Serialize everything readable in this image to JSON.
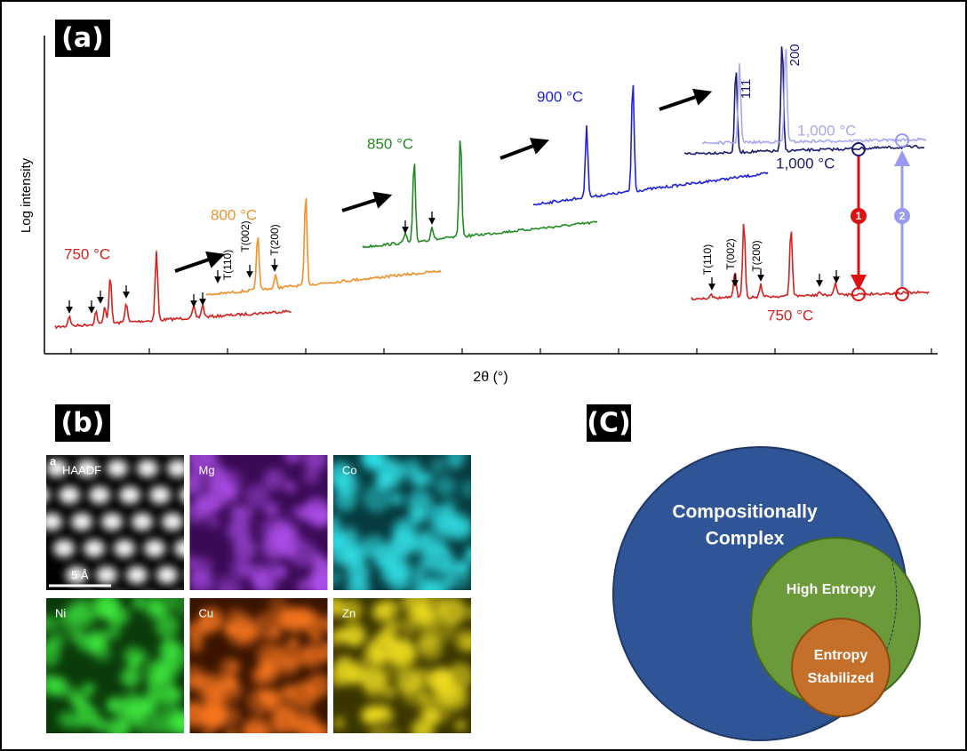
{
  "panel_a": {
    "label": "(a)",
    "y_axis_label": "Log intensity",
    "x_axis_label": "2θ (°)",
    "curves": {
      "c750": "750 °C",
      "c800": "800 °C",
      "c850": "850 °C",
      "c900": "900 °C",
      "c1000_dark": "1,000 °C",
      "c1000_light": "1,000 °C",
      "c750_right": "750 °C"
    },
    "peaks": {
      "p111": "111",
      "p200": "200",
      "t110": "T(110)",
      "t002": "T(002)",
      "t200": "T(200)",
      "t110_r": "T(110)",
      "t002_r": "T(002)",
      "t200_r": "T(200)"
    },
    "steps": {
      "s1": "1",
      "s2": "2"
    }
  },
  "panel_b": {
    "label": "(b)",
    "corner": "a",
    "scale_bar": "5 Å",
    "maps": [
      "HAADF",
      "Mg",
      "Co",
      "Ni",
      "Cu",
      "Zn"
    ]
  },
  "panel_c": {
    "label": "(C)",
    "outer": [
      "Compositionally",
      "Complex"
    ],
    "middle": "High Entropy",
    "inner": [
      "Entropy",
      "Stabilized"
    ]
  }
}
